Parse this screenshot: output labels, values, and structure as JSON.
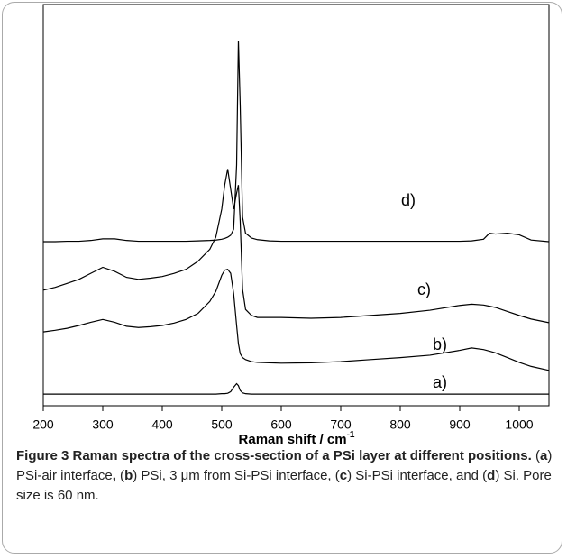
{
  "chart_data": {
    "type": "line",
    "x_label": "Raman shift / cm",
    "x_label_sup": "-1",
    "xlim": [
      200,
      1050
    ],
    "xticks": [
      200,
      300,
      400,
      500,
      600,
      700,
      800,
      900,
      1000
    ],
    "ylim": [
      0,
      100
    ],
    "x": [
      200,
      220,
      240,
      260,
      280,
      300,
      320,
      340,
      360,
      380,
      400,
      420,
      440,
      460,
      480,
      490,
      500,
      505,
      510,
      515,
      520,
      525,
      528,
      531,
      535,
      540,
      550,
      560,
      580,
      600,
      650,
      700,
      750,
      800,
      850,
      900,
      920,
      940,
      950,
      960,
      980,
      1000,
      1020,
      1050
    ],
    "series": [
      {
        "name": "a)",
        "color": "#000000",
        "values": [
          2.9,
          2.9,
          2.9,
          2.9,
          2.9,
          2.9,
          2.9,
          2.9,
          2.9,
          2.9,
          2.9,
          2.9,
          2.9,
          2.9,
          2.9,
          2.9,
          3,
          3,
          3.1,
          3.5,
          4.6,
          5.5,
          5,
          3.8,
          3.2,
          3,
          2.9,
          2.9,
          2.9,
          2.9,
          2.9,
          2.9,
          2.9,
          2.9,
          2.9,
          2.9,
          2.9,
          2.9,
          2.9,
          2.9,
          2.9,
          2.9,
          2.9,
          2.9
        ]
      },
      {
        "name": "b)",
        "color": "#000000",
        "values": [
          18.4,
          18.8,
          19.3,
          20,
          20.8,
          21.5,
          20.8,
          19.8,
          19.5,
          19.7,
          20,
          20.6,
          21.5,
          23,
          26,
          28.5,
          32.5,
          33.8,
          34,
          33,
          28,
          20,
          15.5,
          13,
          12,
          11.5,
          11,
          10.8,
          10.7,
          10.6,
          10.7,
          11,
          11.5,
          12,
          12.6,
          13.8,
          14.4,
          14,
          13.6,
          13.2,
          12,
          10.8,
          9.8,
          8.8
        ]
      },
      {
        "name": "c)",
        "color": "#000000",
        "values": [
          28.8,
          29.5,
          30.5,
          31.5,
          33,
          34.5,
          33.5,
          32,
          31.5,
          31.8,
          32.2,
          33,
          34,
          36,
          39,
          42,
          49,
          55,
          59,
          54,
          49,
          53,
          55,
          46,
          29,
          24,
          22.5,
          22,
          22,
          22,
          21.8,
          22,
          22.5,
          23,
          23.8,
          25,
          25.3,
          25.1,
          24.8,
          24.5,
          23.5,
          22.5,
          21.6,
          20.7
        ]
      },
      {
        "name": "d)",
        "color": "#000000",
        "values": [
          40.9,
          40.9,
          41,
          41,
          41.2,
          41.6,
          41.6,
          41.2,
          41,
          41,
          41,
          41,
          41,
          41.1,
          41.2,
          41.3,
          41.5,
          41.7,
          42,
          42.5,
          44,
          60,
          91,
          75,
          47,
          43,
          41.8,
          41.4,
          41.1,
          41,
          41,
          41,
          41,
          41,
          41,
          41,
          41.1,
          41.5,
          43,
          42.8,
          43,
          42.6,
          41.3,
          40.9
        ]
      }
    ]
  },
  "caption": [
    {
      "text": "Figure 3 Raman spectra of the cross-section of a PSi layer at different positions.",
      "bold": true
    },
    {
      "text": " ("
    },
    {
      "text": "a",
      "bold": true
    },
    {
      "text": ") PSi-air interface"
    },
    {
      "text": ",",
      "bold": true
    },
    {
      "text": " ("
    },
    {
      "text": "b",
      "bold": true
    },
    {
      "text": ") PSi, 3 μm from Si-PSi interface, ("
    },
    {
      "text": "c",
      "bold": true
    },
    {
      "text": ") Si-PSi interface, and ("
    },
    {
      "text": "d",
      "bold": true
    },
    {
      "text": ") Si. Pore size is 60 nm."
    }
  ]
}
